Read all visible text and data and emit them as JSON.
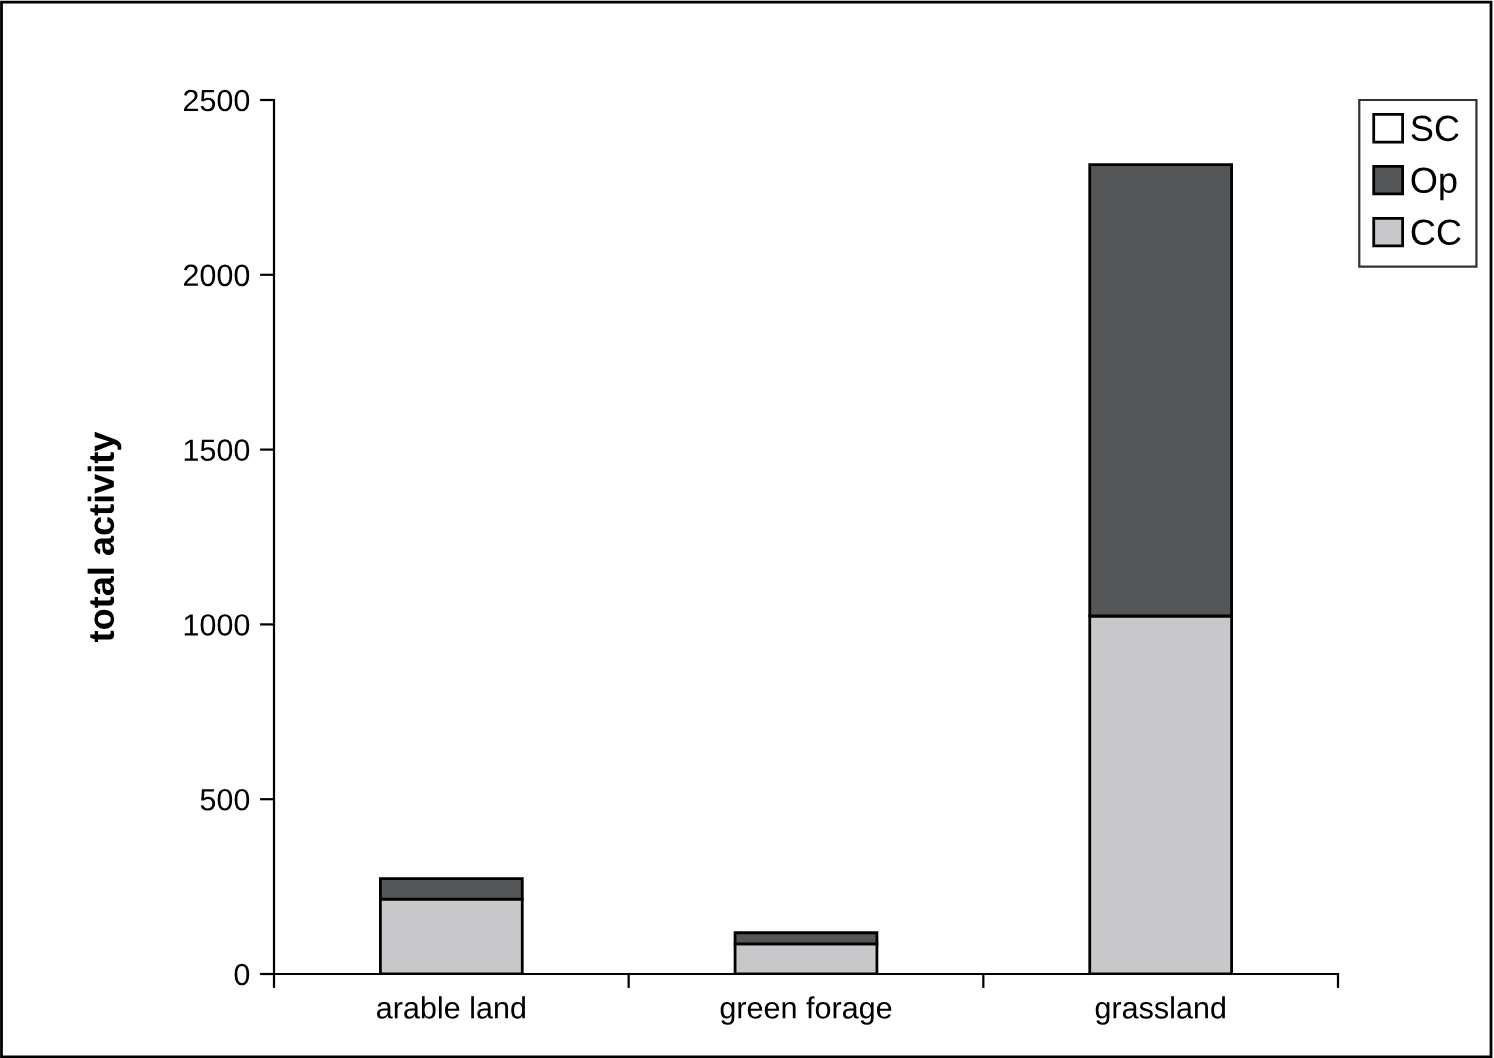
{
  "chart_data": {
    "type": "bar",
    "stacked": true,
    "ylabel": "total activity",
    "categories": [
      "arable land",
      "green forage",
      "grassland"
    ],
    "series": [
      {
        "name": "CC",
        "color": "#c8c8ca",
        "values": [
          214,
          86,
          1024
        ]
      },
      {
        "name": "Op",
        "color": "#555657",
        "values": [
          59,
          32,
          1291
        ]
      },
      {
        "name": "SC",
        "color": "#ffffff",
        "values": [
          0,
          0,
          0
        ]
      }
    ],
    "ylim": [
      0,
      2500
    ],
    "yticks": [
      0,
      500,
      1000,
      1500,
      2000,
      2500
    ],
    "grid": false,
    "legend": "top right"
  }
}
